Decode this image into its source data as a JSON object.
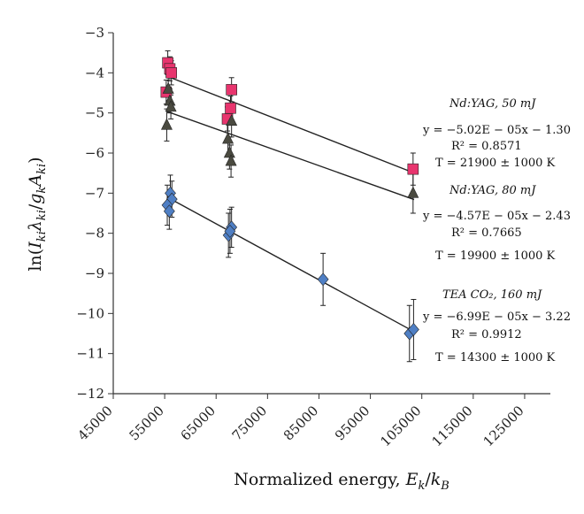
{
  "chart_data": {
    "type": "scatter",
    "xlabel": "Normalized energy, E_k/k_B",
    "ylabel": "ln(I_ki λ_ki / g_k A_ki)",
    "xlim": [
      45000,
      130000
    ],
    "ylim": [
      -12,
      -3
    ],
    "xticks": [
      45000,
      55000,
      65000,
      75000,
      85000,
      95000,
      105000,
      115000,
      125000
    ],
    "yticks": [
      -3,
      -4,
      -5,
      -6,
      -7,
      -8,
      -9,
      -10,
      -11,
      -12
    ],
    "grid": false,
    "series": [
      {
        "name": "Nd:YAG, 50 mJ",
        "marker": "square",
        "color": "#e8356e",
        "points": [
          {
            "x": 55600,
            "y": -3.75,
            "err": 0.3
          },
          {
            "x": 56000,
            "y": -3.9,
            "err": 0.3
          },
          {
            "x": 56300,
            "y": -4.0,
            "err": 0.3
          },
          {
            "x": 55300,
            "y": -4.48,
            "err": 0.3
          },
          {
            "x": 68000,
            "y": -4.42,
            "err": 0.3
          },
          {
            "x": 67800,
            "y": -4.88,
            "err": 0.3
          },
          {
            "x": 67200,
            "y": -5.15,
            "err": 0.3
          },
          {
            "x": 103300,
            "y": -6.4,
            "err": 0.4
          }
        ],
        "fit": {
          "slope": -5.02e-05,
          "intercept": -1.3,
          "x_range": [
            55500,
            103500
          ]
        },
        "annotation": {
          "title": "Nd:YAG, 50 mJ",
          "equation": "y = −5.02E − 05x − 1.30",
          "r2": "R² = 0.8571",
          "temperature": "T = 21900 ± 1000 K"
        }
      },
      {
        "name": "Nd:YAG, 80 mJ",
        "marker": "triangle",
        "color": "#4a4a40",
        "points": [
          {
            "x": 55700,
            "y": -4.4,
            "err": 0.3
          },
          {
            "x": 56000,
            "y": -4.7,
            "err": 0.3
          },
          {
            "x": 56200,
            "y": -4.85,
            "err": 0.3
          },
          {
            "x": 55400,
            "y": -5.3,
            "err": 0.4
          },
          {
            "x": 68000,
            "y": -5.2,
            "err": 0.4
          },
          {
            "x": 67300,
            "y": -5.65,
            "err": 0.4
          },
          {
            "x": 67600,
            "y": -6.0,
            "err": 0.4
          },
          {
            "x": 67900,
            "y": -6.2,
            "err": 0.4
          },
          {
            "x": 103300,
            "y": -7.0,
            "err": 0.5
          }
        ],
        "fit": {
          "slope": -4.57e-05,
          "intercept": -2.43,
          "x_range": [
            55500,
            103500
          ]
        },
        "annotation": {
          "title": "Nd:YAG, 80 mJ",
          "equation": "y = −4.57E − 05x − 2.43",
          "r2": "R² = 0.7665",
          "temperature": "T = 19900 ± 1000 K"
        }
      },
      {
        "name": "TEA CO₂, 160 mJ",
        "marker": "diamond",
        "color": "#4f7fc4",
        "points": [
          {
            "x": 56100,
            "y": -7.0,
            "err": 0.45
          },
          {
            "x": 56400,
            "y": -7.15,
            "err": 0.45
          },
          {
            "x": 55500,
            "y": -7.3,
            "err": 0.5
          },
          {
            "x": 55900,
            "y": -7.45,
            "err": 0.45
          },
          {
            "x": 68000,
            "y": -7.85,
            "err": 0.5
          },
          {
            "x": 67400,
            "y": -8.05,
            "err": 0.55
          },
          {
            "x": 67700,
            "y": -7.95,
            "err": 0.55
          },
          {
            "x": 85800,
            "y": -9.15,
            "err": 0.65
          },
          {
            "x": 102600,
            "y": -10.5,
            "err": 0.7
          },
          {
            "x": 103400,
            "y": -10.4,
            "err": 0.75
          }
        ],
        "fit": {
          "slope": -6.99e-05,
          "intercept": -3.22,
          "x_range": [
            55500,
            103500
          ]
        },
        "annotation": {
          "title": "TEA CO₂, 160 mJ",
          "equation": "y = −6.99E − 05x − 3.22",
          "r2": "R² = 0.9912",
          "temperature": "T = 14300 ± 1000 K"
        }
      }
    ]
  }
}
